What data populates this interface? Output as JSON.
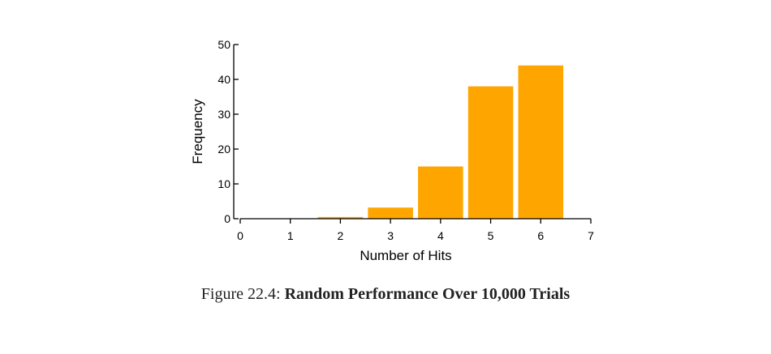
{
  "chart_data": {
    "type": "bar",
    "x": [
      1,
      2,
      3,
      4,
      5,
      6
    ],
    "values": [
      0,
      0.5,
      3.2,
      15,
      38,
      44
    ],
    "xlabel": "Number of Hits",
    "ylabel": "Frequency",
    "xlim": [
      0,
      7
    ],
    "ylim": [
      0,
      50
    ],
    "xticks": [
      0,
      1,
      2,
      3,
      4,
      5,
      6,
      7
    ],
    "yticks": [
      0,
      10,
      20,
      30,
      40,
      50
    ],
    "bar_color": "#FFA500",
    "grid": false
  },
  "caption": {
    "prefix": "Figure 22.4: ",
    "title": "Random Performance Over 10,000 Trials"
  }
}
